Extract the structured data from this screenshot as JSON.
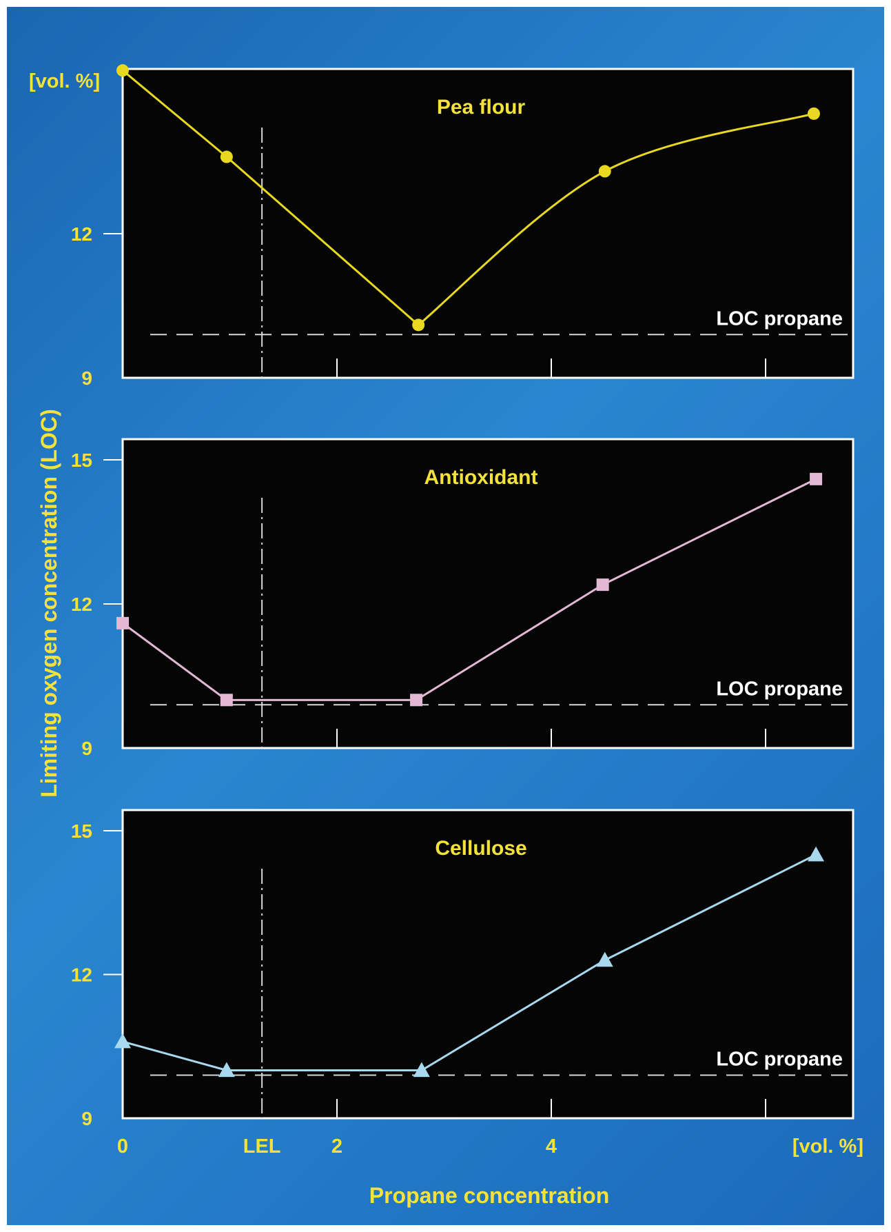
{
  "chart_data": {
    "type": "line",
    "y_axis_label": "Limiting oxygen concentration (LOC)",
    "y_unit_label": "[vol. %]",
    "x_axis_label": "Propane concentration",
    "x_unit_label": "[vol. %]",
    "xlim": [
      0,
      6
    ],
    "x_ticks": [
      {
        "value": 0,
        "label": "0"
      },
      {
        "value": 1.3,
        "label": "LEL"
      },
      {
        "value": 2,
        "label": "2"
      },
      {
        "value": 4,
        "label": "4"
      },
      {
        "value": 6,
        "label": ""
      }
    ],
    "lel_value": 1.3,
    "colors": {
      "text": "#f4e23a",
      "pea_flour": "#e8d820",
      "antioxidant": "#e2b8d4",
      "cellulose": "#a8d8ee",
      "guide": "#d8d8d8",
      "panel": "#050505",
      "frame": "#ffffff"
    },
    "panels": [
      {
        "title": "Pea flour",
        "ylim": [
          9,
          15
        ],
        "y_ticks": [
          {
            "value": 9,
            "label": "9"
          },
          {
            "value": 12,
            "label": "12"
          }
        ],
        "reference_line": {
          "label": "LOC propane",
          "value": 9.9
        },
        "series": {
          "marker": "circle",
          "points": [
            {
              "x": 0.0,
              "y": 15.4
            },
            {
              "x": 0.97,
              "y": 13.6
            },
            {
              "x": 2.76,
              "y": 10.1
            },
            {
              "x": 4.5,
              "y": 13.3
            },
            {
              "x": 6.45,
              "y": 14.5
            }
          ]
        }
      },
      {
        "title": "Antioxidant",
        "ylim": [
          9,
          15
        ],
        "y_ticks": [
          {
            "value": 9,
            "label": "9"
          },
          {
            "value": 12,
            "label": "12"
          },
          {
            "value": 15,
            "label": "15"
          }
        ],
        "reference_line": {
          "label": "LOC propane",
          "value": 9.9
        },
        "series": {
          "marker": "square",
          "points": [
            {
              "x": 0.0,
              "y": 11.6
            },
            {
              "x": 0.97,
              "y": 10.0
            },
            {
              "x": 2.74,
              "y": 10.0
            },
            {
              "x": 4.48,
              "y": 12.4
            },
            {
              "x": 6.47,
              "y": 14.6
            }
          ]
        }
      },
      {
        "title": "Cellulose",
        "ylim": [
          9,
          15
        ],
        "y_ticks": [
          {
            "value": 9,
            "label": "9"
          },
          {
            "value": 12,
            "label": "12"
          },
          {
            "value": 15,
            "label": "15"
          }
        ],
        "reference_line": {
          "label": "LOC propane",
          "value": 9.9
        },
        "series": {
          "marker": "triangle",
          "points": [
            {
              "x": 0.0,
              "y": 10.6
            },
            {
              "x": 0.97,
              "y": 10.0
            },
            {
              "x": 2.79,
              "y": 10.0
            },
            {
              "x": 4.5,
              "y": 12.3
            },
            {
              "x": 6.47,
              "y": 14.5
            }
          ]
        }
      }
    ]
  }
}
